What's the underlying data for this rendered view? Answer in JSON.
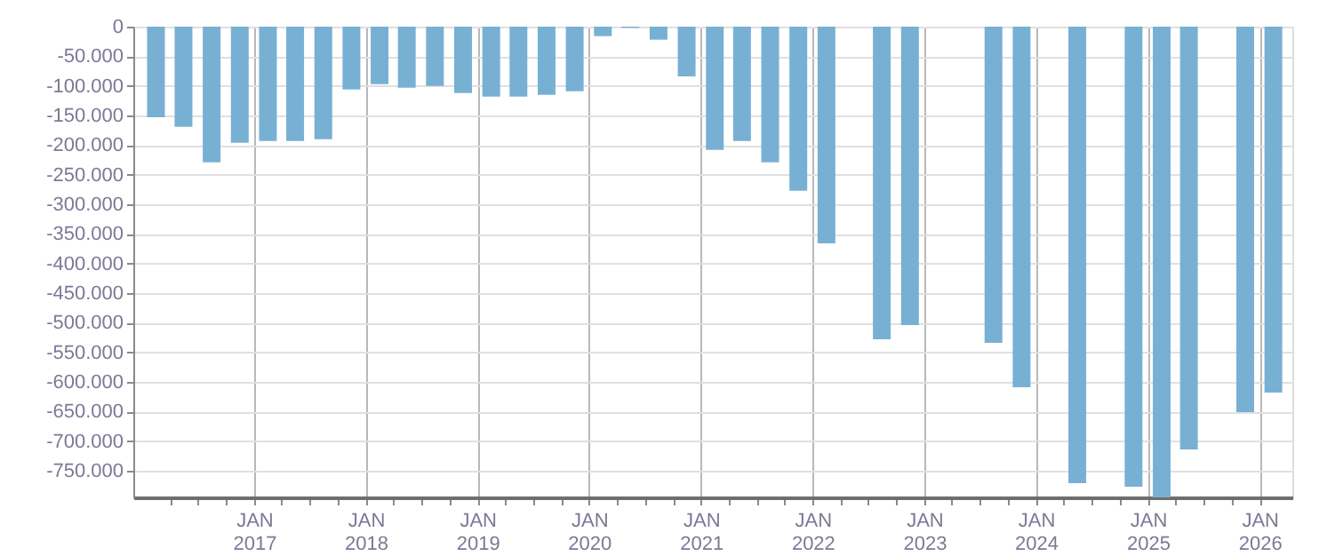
{
  "chart_data": {
    "type": "bar",
    "color": "#78b0d4",
    "x": [
      "2016-02-15",
      "2016-05-15",
      "2016-08-15",
      "2016-11-15",
      "2017-02-15",
      "2017-05-15",
      "2017-08-15",
      "2017-11-15",
      "2018-02-15",
      "2018-05-15",
      "2018-08-15",
      "2018-11-15",
      "2019-02-15",
      "2019-05-15",
      "2019-08-15",
      "2019-11-15",
      "2020-02-15",
      "2020-05-15",
      "2020-08-15",
      "2020-11-15",
      "2021-02-15",
      "2021-05-15",
      "2021-08-15",
      "2021-11-15",
      "2022-02-15",
      "2022-08-15",
      "2022-11-15",
      "2023-08-15",
      "2023-11-15",
      "2024-05-15",
      "2024-11-15",
      "2025-02-15",
      "2025-05-15",
      "2025-11-15",
      "2026-02-15"
    ],
    "values": [
      -153000,
      -169000,
      -229000,
      -196000,
      -193000,
      -193000,
      -190000,
      -106000,
      -97000,
      -103000,
      -100000,
      -112000,
      -118000,
      -118000,
      -115000,
      -109000,
      -16000,
      -2000,
      -22000,
      -84000,
      -208000,
      -193000,
      -229000,
      -277000,
      -366000,
      -528000,
      -504000,
      -534000,
      -609000,
      -771000,
      -777000,
      -795000,
      -714000,
      -651000,
      -618000
    ],
    "xlim": [
      "2016-01-01",
      "2026-03-20"
    ],
    "ylim": [
      -795000,
      0
    ],
    "yticks": [
      0,
      {
        "value": -50000,
        "label": "-50.000"
      },
      {
        "value": -100000,
        "label": "-100.000"
      },
      {
        "value": -150000,
        "label": "-150.000"
      },
      {
        "value": -200000,
        "label": "-200.000"
      },
      {
        "value": -250000,
        "label": "-250.000"
      },
      {
        "value": -300000,
        "label": "-300.000"
      },
      {
        "value": -350000,
        "label": "-350.000"
      },
      {
        "value": -400000,
        "label": "-400.000"
      },
      {
        "value": -450000,
        "label": "-450.000"
      },
      {
        "value": -500000,
        "label": "-500.000"
      },
      {
        "value": -550000,
        "label": "-550.000"
      },
      {
        "value": -600000,
        "label": "-600.000"
      },
      {
        "value": -650000,
        "label": "-650.000"
      },
      {
        "value": -700000,
        "label": "-700.000"
      },
      {
        "value": -750000,
        "label": "-750.000"
      }
    ],
    "xticks": [
      {
        "value": "2016-04",
        "label": null
      },
      {
        "value": "2016-07",
        "label": null
      },
      {
        "value": "2016-10",
        "label": null
      },
      {
        "value": "2017-01",
        "label": "JAN 2017"
      },
      {
        "value": "2017-04",
        "label": null
      },
      {
        "value": "2017-07",
        "label": null
      },
      {
        "value": "2017-10",
        "label": null
      },
      {
        "value": "2018-01",
        "label": "JAN 2018"
      },
      {
        "value": "2018-04",
        "label": null
      },
      {
        "value": "2018-07",
        "label": null
      },
      {
        "value": "2018-10",
        "label": null
      },
      {
        "value": "2019-01",
        "label": "JAN 2019"
      },
      {
        "value": "2019-04",
        "label": null
      },
      {
        "value": "2019-07",
        "label": null
      },
      {
        "value": "2019-10",
        "label": null
      },
      {
        "value": "2020-01",
        "label": "JAN 2020"
      },
      {
        "value": "2020-04",
        "label": null
      },
      {
        "value": "2020-07",
        "label": null
      },
      {
        "value": "2020-10",
        "label": null
      },
      {
        "value": "2021-01",
        "label": "JAN 2021"
      },
      {
        "value": "2021-04",
        "label": null
      },
      {
        "value": "2021-07",
        "label": null
      },
      {
        "value": "2021-10",
        "label": null
      },
      {
        "value": "2022-01",
        "label": "JAN 2022"
      },
      {
        "value": "2022-04",
        "label": null
      },
      {
        "value": "2022-07",
        "label": null
      },
      {
        "value": "2022-10",
        "label": null
      },
      {
        "value": "2023-01",
        "label": "JAN 2023"
      },
      {
        "value": "2023-04",
        "label": null
      },
      {
        "value": "2023-07",
        "label": null
      },
      {
        "value": "2023-10",
        "label": null
      },
      {
        "value": "2024-01",
        "label": "JAN 2024"
      },
      {
        "value": "2024-04",
        "label": null
      },
      {
        "value": "2024-07",
        "label": null
      },
      {
        "value": "2024-10",
        "label": null
      },
      {
        "value": "2025-01",
        "label": "JAN 2025"
      },
      {
        "value": "2025-04",
        "label": null
      },
      {
        "value": "2025-07",
        "label": null
      },
      {
        "value": "2025-10",
        "label": null
      },
      {
        "value": "2026-01",
        "label": "JAN 2026"
      }
    ],
    "grid": true
  }
}
